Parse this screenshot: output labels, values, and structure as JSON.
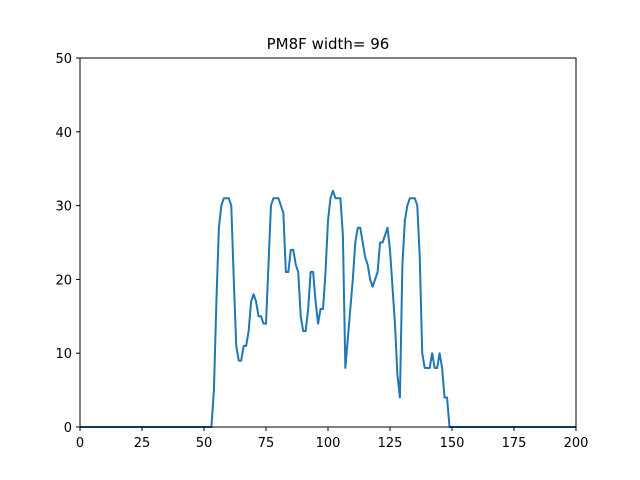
{
  "chart_data": {
    "type": "line",
    "title": "PM8F width= 96",
    "xlabel": "",
    "ylabel": "",
    "xlim": [
      0,
      200
    ],
    "ylim": [
      0,
      50
    ],
    "xticks": [
      0,
      25,
      50,
      75,
      100,
      125,
      150,
      175,
      200
    ],
    "yticks": [
      0,
      10,
      20,
      30,
      40,
      50
    ],
    "grid": false,
    "line_color": "#1f77b4",
    "series": [
      {
        "x": [
          0,
          1,
          2,
          3,
          4,
          5,
          6,
          7,
          8,
          9,
          10,
          11,
          12,
          13,
          14,
          15,
          16,
          17,
          18,
          19,
          20,
          21,
          22,
          23,
          24,
          25,
          26,
          27,
          28,
          29,
          30,
          31,
          32,
          33,
          34,
          35,
          36,
          37,
          38,
          39,
          40,
          41,
          42,
          43,
          44,
          45,
          46,
          47,
          48,
          49,
          50,
          51,
          52,
          53,
          54,
          55,
          56,
          57,
          58,
          59,
          60,
          61,
          62,
          63,
          64,
          65,
          66,
          67,
          68,
          69,
          70,
          71,
          72,
          73,
          74,
          75,
          76,
          77,
          78,
          79,
          80,
          81,
          82,
          83,
          84,
          85,
          86,
          87,
          88,
          89,
          90,
          91,
          92,
          93,
          94,
          95,
          96,
          97,
          98,
          99,
          100,
          101,
          102,
          103,
          104,
          105,
          106,
          107,
          108,
          109,
          110,
          111,
          112,
          113,
          114,
          115,
          116,
          117,
          118,
          119,
          120,
          121,
          122,
          123,
          124,
          125,
          126,
          127,
          128,
          129,
          130,
          131,
          132,
          133,
          134,
          135,
          136,
          137,
          138,
          139,
          140,
          141,
          142,
          143,
          144,
          145,
          146,
          147,
          148,
          149,
          150,
          151,
          152,
          153,
          154,
          155,
          156,
          157,
          158,
          159,
          160,
          161,
          162,
          163,
          164,
          165,
          166,
          167,
          168,
          169,
          170,
          171,
          172,
          173,
          174,
          175,
          176,
          177,
          178,
          179,
          180,
          181,
          182,
          183,
          184,
          185,
          186,
          187,
          188,
          189,
          190,
          191,
          192,
          193,
          194,
          195,
          196,
          197,
          198,
          199,
          200
        ],
        "y": [
          0,
          0,
          0,
          0,
          0,
          0,
          0,
          0,
          0,
          0,
          0,
          0,
          0,
          0,
          0,
          0,
          0,
          0,
          0,
          0,
          0,
          0,
          0,
          0,
          0,
          0,
          0,
          0,
          0,
          0,
          0,
          0,
          0,
          0,
          0,
          0,
          0,
          0,
          0,
          0,
          0,
          0,
          0,
          0,
          0,
          0,
          0,
          0,
          0,
          0,
          0,
          0,
          0,
          0,
          5,
          17,
          27,
          30,
          31,
          31,
          31,
          30,
          20,
          11,
          9,
          9,
          11,
          11,
          13,
          17,
          18,
          17,
          15,
          15,
          14,
          14,
          22,
          30,
          31,
          31,
          31,
          30,
          29,
          21,
          21,
          24,
          24,
          22,
          21,
          15,
          13,
          13,
          16,
          21,
          21,
          17,
          14,
          16,
          16,
          21,
          28,
          31,
          32,
          31,
          31,
          31,
          26,
          8,
          12,
          16,
          20,
          25,
          27,
          27,
          25,
          23,
          22,
          20,
          19,
          20,
          21,
          25,
          25,
          26,
          27,
          24,
          19,
          14,
          7,
          4,
          22,
          28,
          30,
          31,
          31,
          31,
          30,
          23,
          10,
          8,
          8,
          8,
          10,
          8,
          8,
          10,
          8,
          4,
          4,
          0,
          0,
          0,
          0,
          0,
          0,
          0,
          0,
          0,
          0,
          0,
          0,
          0,
          0,
          0,
          0,
          0,
          0,
          0,
          0,
          0,
          0,
          0,
          0,
          0,
          0,
          0,
          0,
          0,
          0,
          0,
          0,
          0,
          0,
          0,
          0,
          0,
          0,
          0,
          0,
          0,
          0,
          0,
          0,
          0,
          0,
          0,
          0,
          0,
          0,
          0,
          0
        ]
      }
    ]
  }
}
